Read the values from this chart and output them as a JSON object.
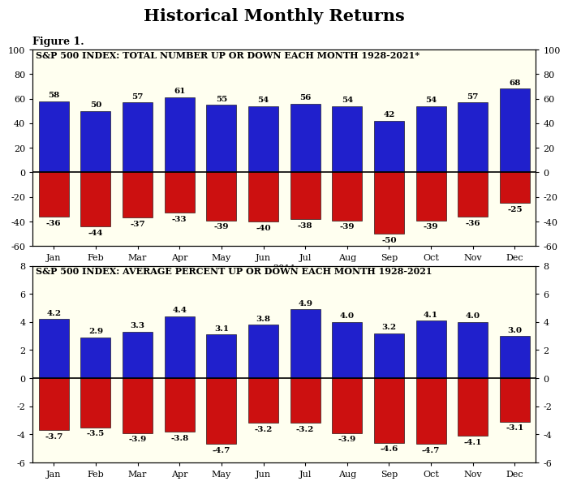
{
  "title": "Historical Monthly Returns",
  "figure_label": "Figure 1.",
  "months": [
    "Jan",
    "Feb",
    "Mar",
    "Apr",
    "May",
    "Jun",
    "Jul",
    "Aug",
    "Sep",
    "Oct",
    "Nov",
    "Dec"
  ],
  "chart1": {
    "title": "S&P 500 INDEX: TOTAL NUMBER UP OR DOWN EACH MONTH 1928-2021*",
    "up_values": [
      58,
      50,
      57,
      61,
      55,
      54,
      56,
      54,
      42,
      54,
      57,
      68
    ],
    "down_values": [
      -36,
      -44,
      -37,
      -33,
      -39,
      -40,
      -38,
      -39,
      -50,
      -39,
      -36,
      -25
    ],
    "ylim": [
      -60,
      100
    ],
    "yticks": [
      -60,
      -40,
      -20,
      0,
      20,
      40,
      60,
      80,
      100
    ],
    "xlabel": "2011"
  },
  "chart2": {
    "title": "S&P 500 INDEX: AVERAGE PERCENT UP OR DOWN EACH MONTH 1928-2021",
    "up_values": [
      4.2,
      2.9,
      3.3,
      4.4,
      3.1,
      3.8,
      4.9,
      4.0,
      3.2,
      4.1,
      4.0,
      3.0
    ],
    "down_values": [
      -3.7,
      -3.5,
      -3.9,
      -3.8,
      -4.7,
      -3.2,
      -3.2,
      -3.9,
      -4.6,
      -4.7,
      -4.1,
      -3.1
    ],
    "ylim": [
      -6,
      8
    ],
    "yticks": [
      -6,
      -4,
      -2,
      0,
      2,
      4,
      6,
      8
    ],
    "xlabel": ""
  },
  "bar_color_up": "#2020cc",
  "bar_color_down": "#cc1010",
  "background_color": "#fffff0",
  "title_fontsize": 15,
  "subtitle_fontsize": 8,
  "tick_fontsize": 8,
  "label_fontsize": 7.5
}
